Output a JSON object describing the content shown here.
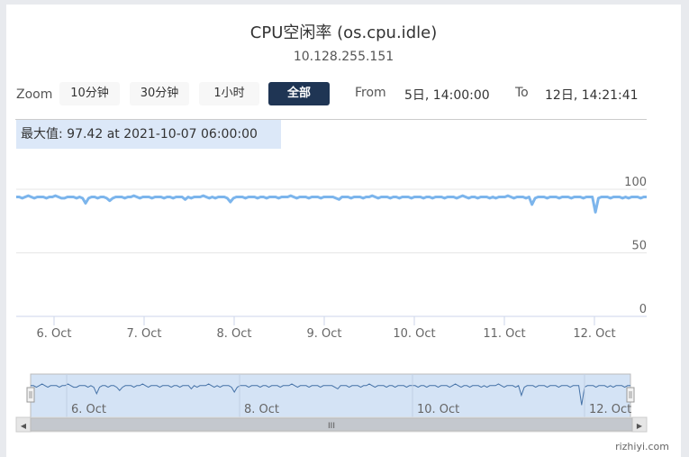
{
  "chart_data": {
    "type": "line",
    "title": "CPU空闲率 (os.cpu.idle)",
    "subtitle": "10.128.255.151",
    "series": [
      {
        "values": [
          94,
          94,
          93,
          94,
          95,
          94,
          93,
          94,
          94,
          94,
          93,
          94,
          94,
          95,
          94,
          93,
          93,
          94,
          94,
          94,
          93,
          94,
          93,
          89,
          93,
          94,
          94,
          93,
          94,
          94,
          93,
          91,
          93,
          94,
          94,
          94,
          93,
          94,
          94,
          95,
          94,
          93,
          94,
          94,
          94,
          93,
          94,
          94,
          94,
          93,
          94,
          94,
          93,
          94,
          94,
          94,
          92,
          94,
          93,
          94,
          94,
          94,
          95,
          94,
          93,
          94,
          93,
          94,
          94,
          94,
          93,
          90,
          93,
          94,
          94,
          94,
          93,
          94,
          94,
          94,
          93,
          94,
          94,
          93,
          94,
          94,
          94,
          93,
          94,
          94,
          94,
          95,
          94,
          93,
          94,
          94,
          94,
          93,
          94,
          94,
          94,
          93,
          94,
          94,
          94,
          94,
          93,
          92,
          94,
          94,
          94,
          93,
          94,
          94,
          94,
          93,
          94,
          94,
          95,
          94,
          93,
          94,
          94,
          94,
          93,
          94,
          94,
          93,
          94,
          94,
          94,
          93,
          94,
          94,
          94,
          93,
          94,
          94,
          93,
          94,
          94,
          94,
          93,
          94,
          94,
          94,
          93,
          94,
          95,
          94,
          93,
          94,
          94,
          93,
          94,
          94,
          94,
          93,
          94,
          93,
          94,
          94,
          94,
          95,
          94,
          93,
          94,
          94,
          94,
          93,
          94,
          88,
          93,
          94,
          94,
          94,
          93,
          94,
          94,
          94,
          93,
          94,
          94,
          94,
          93,
          94,
          94,
          94,
          93,
          94,
          94,
          94,
          82,
          93,
          94,
          94,
          94,
          93,
          94,
          94,
          94,
          93,
          94,
          93,
          94,
          94,
          94,
          93,
          94,
          94
        ]
      }
    ],
    "y_ticks": [
      100,
      50,
      0
    ],
    "ylim": [
      0,
      100
    ],
    "x_tick_labels": [
      "6. Oct",
      "7. Oct",
      "8. Oct",
      "9. Oct",
      "10. Oct",
      "11. Oct",
      "12. Oct"
    ],
    "navigator_tick_labels": [
      "6. Oct",
      "8. Oct",
      "10. Oct",
      "12. Oct"
    ],
    "colors": {
      "line": "#7cb5ec",
      "navigator_fill": "#d4e3f5",
      "navigator_line": "#4572a7"
    },
    "grid": true
  },
  "zoom": {
    "label": "Zoom",
    "buttons": [
      "10分钟",
      "30分钟",
      "1小时",
      "全部"
    ],
    "selected": "全部"
  },
  "range": {
    "from_label": "From",
    "from_value": "5日, 14:00:00",
    "to_label": "To",
    "to_value": "12日, 14:21:41"
  },
  "tooltip": {
    "text": "最大值: 97.42 at 2021-10-07 06:00:00"
  },
  "scrollbar": {
    "left_arrow": "◀",
    "right_arrow": "▶",
    "grip": "III"
  },
  "watermark": "rizhiyi.com"
}
